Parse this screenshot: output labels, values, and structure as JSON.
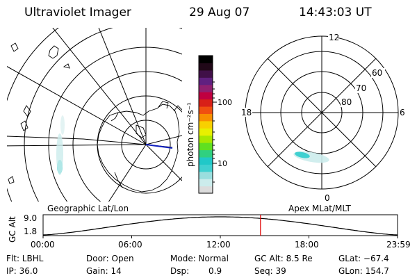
{
  "header": {
    "instrument": "Ultraviolet Imager",
    "date": "29 Aug 07",
    "time": "14:43:03 UT"
  },
  "colorbar": {
    "unit": "photon cm⁻²s⁻¹",
    "ticks": [
      "100",
      "10"
    ],
    "colors": [
      "#dcdcdc",
      "#ccecec",
      "#9adede",
      "#40d0d0",
      "#20c8c8",
      "#30d080",
      "#60e020",
      "#a8e800",
      "#e8f000",
      "#f8d000",
      "#f89000",
      "#f05010",
      "#d82018",
      "#c00040",
      "#902070",
      "#602080",
      "#401048",
      "#200818",
      "#000000"
    ]
  },
  "map_left": {
    "label": "Geographic Lat/Lon"
  },
  "map_right": {
    "label": "Apex MLat/MLT",
    "lat_labels": [
      "60",
      "70",
      "80"
    ],
    "mlt_labels": [
      "12",
      "18",
      "6",
      "0"
    ]
  },
  "orbit_plot": {
    "ylabel": "GC Alt",
    "y_ticks": [
      "9.0",
      "1.8"
    ],
    "x_ticks": [
      "00:00",
      "06:00",
      "12:00",
      "18:00",
      "23:59"
    ],
    "current_time_hours": 14.72,
    "marker_color": "#e00000"
  },
  "info": {
    "filter": "Flt: LBHL",
    "door": "Door: Open",
    "mode": "Mode: Normal",
    "gc_alt": "GC Alt: 8.5 Re",
    "glat": "GLat: −67.4",
    "ip": "IP: 36.0",
    "gain": "Gain: 14",
    "dsp_label": "Dsp:",
    "dsp_value": "0.9",
    "seq": "Seq: 39",
    "glon": "GLon: 154.7"
  }
}
